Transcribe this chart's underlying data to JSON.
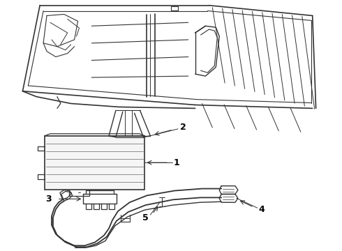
{
  "background_color": "#ffffff",
  "line_color": "#333333",
  "label_color": "#000000",
  "figure_width": 4.9,
  "figure_height": 3.6,
  "dpi": 100
}
